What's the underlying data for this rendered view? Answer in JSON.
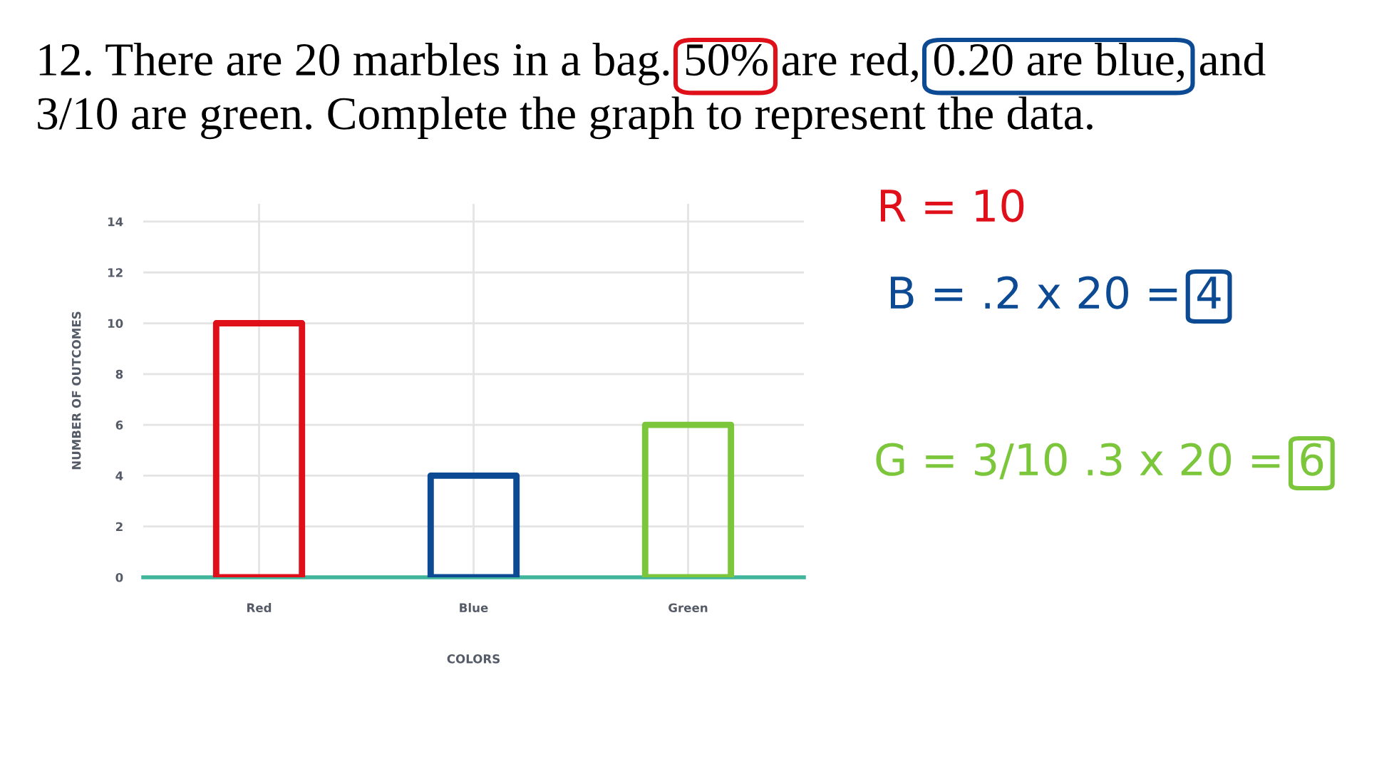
{
  "chart_data": {
    "type": "bar",
    "title": "12. There are 20 marbles in a bag. 50% are red, 0.20 are blue, and 3/10 are green. Complete the graph to represent the data.",
    "xlabel": "COLORS",
    "ylabel": "NUMBER OF OUTCOMES",
    "categories": [
      "Red",
      "Blue",
      "Green"
    ],
    "values": [
      10,
      4,
      6
    ],
    "colors": [
      "#e0101a",
      "#0d4a94",
      "#7cc63c"
    ],
    "ylim": [
      0,
      14.7
    ],
    "yticks": [
      0,
      2,
      4,
      6,
      8,
      10,
      12,
      14
    ],
    "grid": true,
    "annotations": [
      "R = 10",
      "B = .2 x 20 = 4",
      "G = 3/10 .3 x 20 = 6"
    ]
  }
}
